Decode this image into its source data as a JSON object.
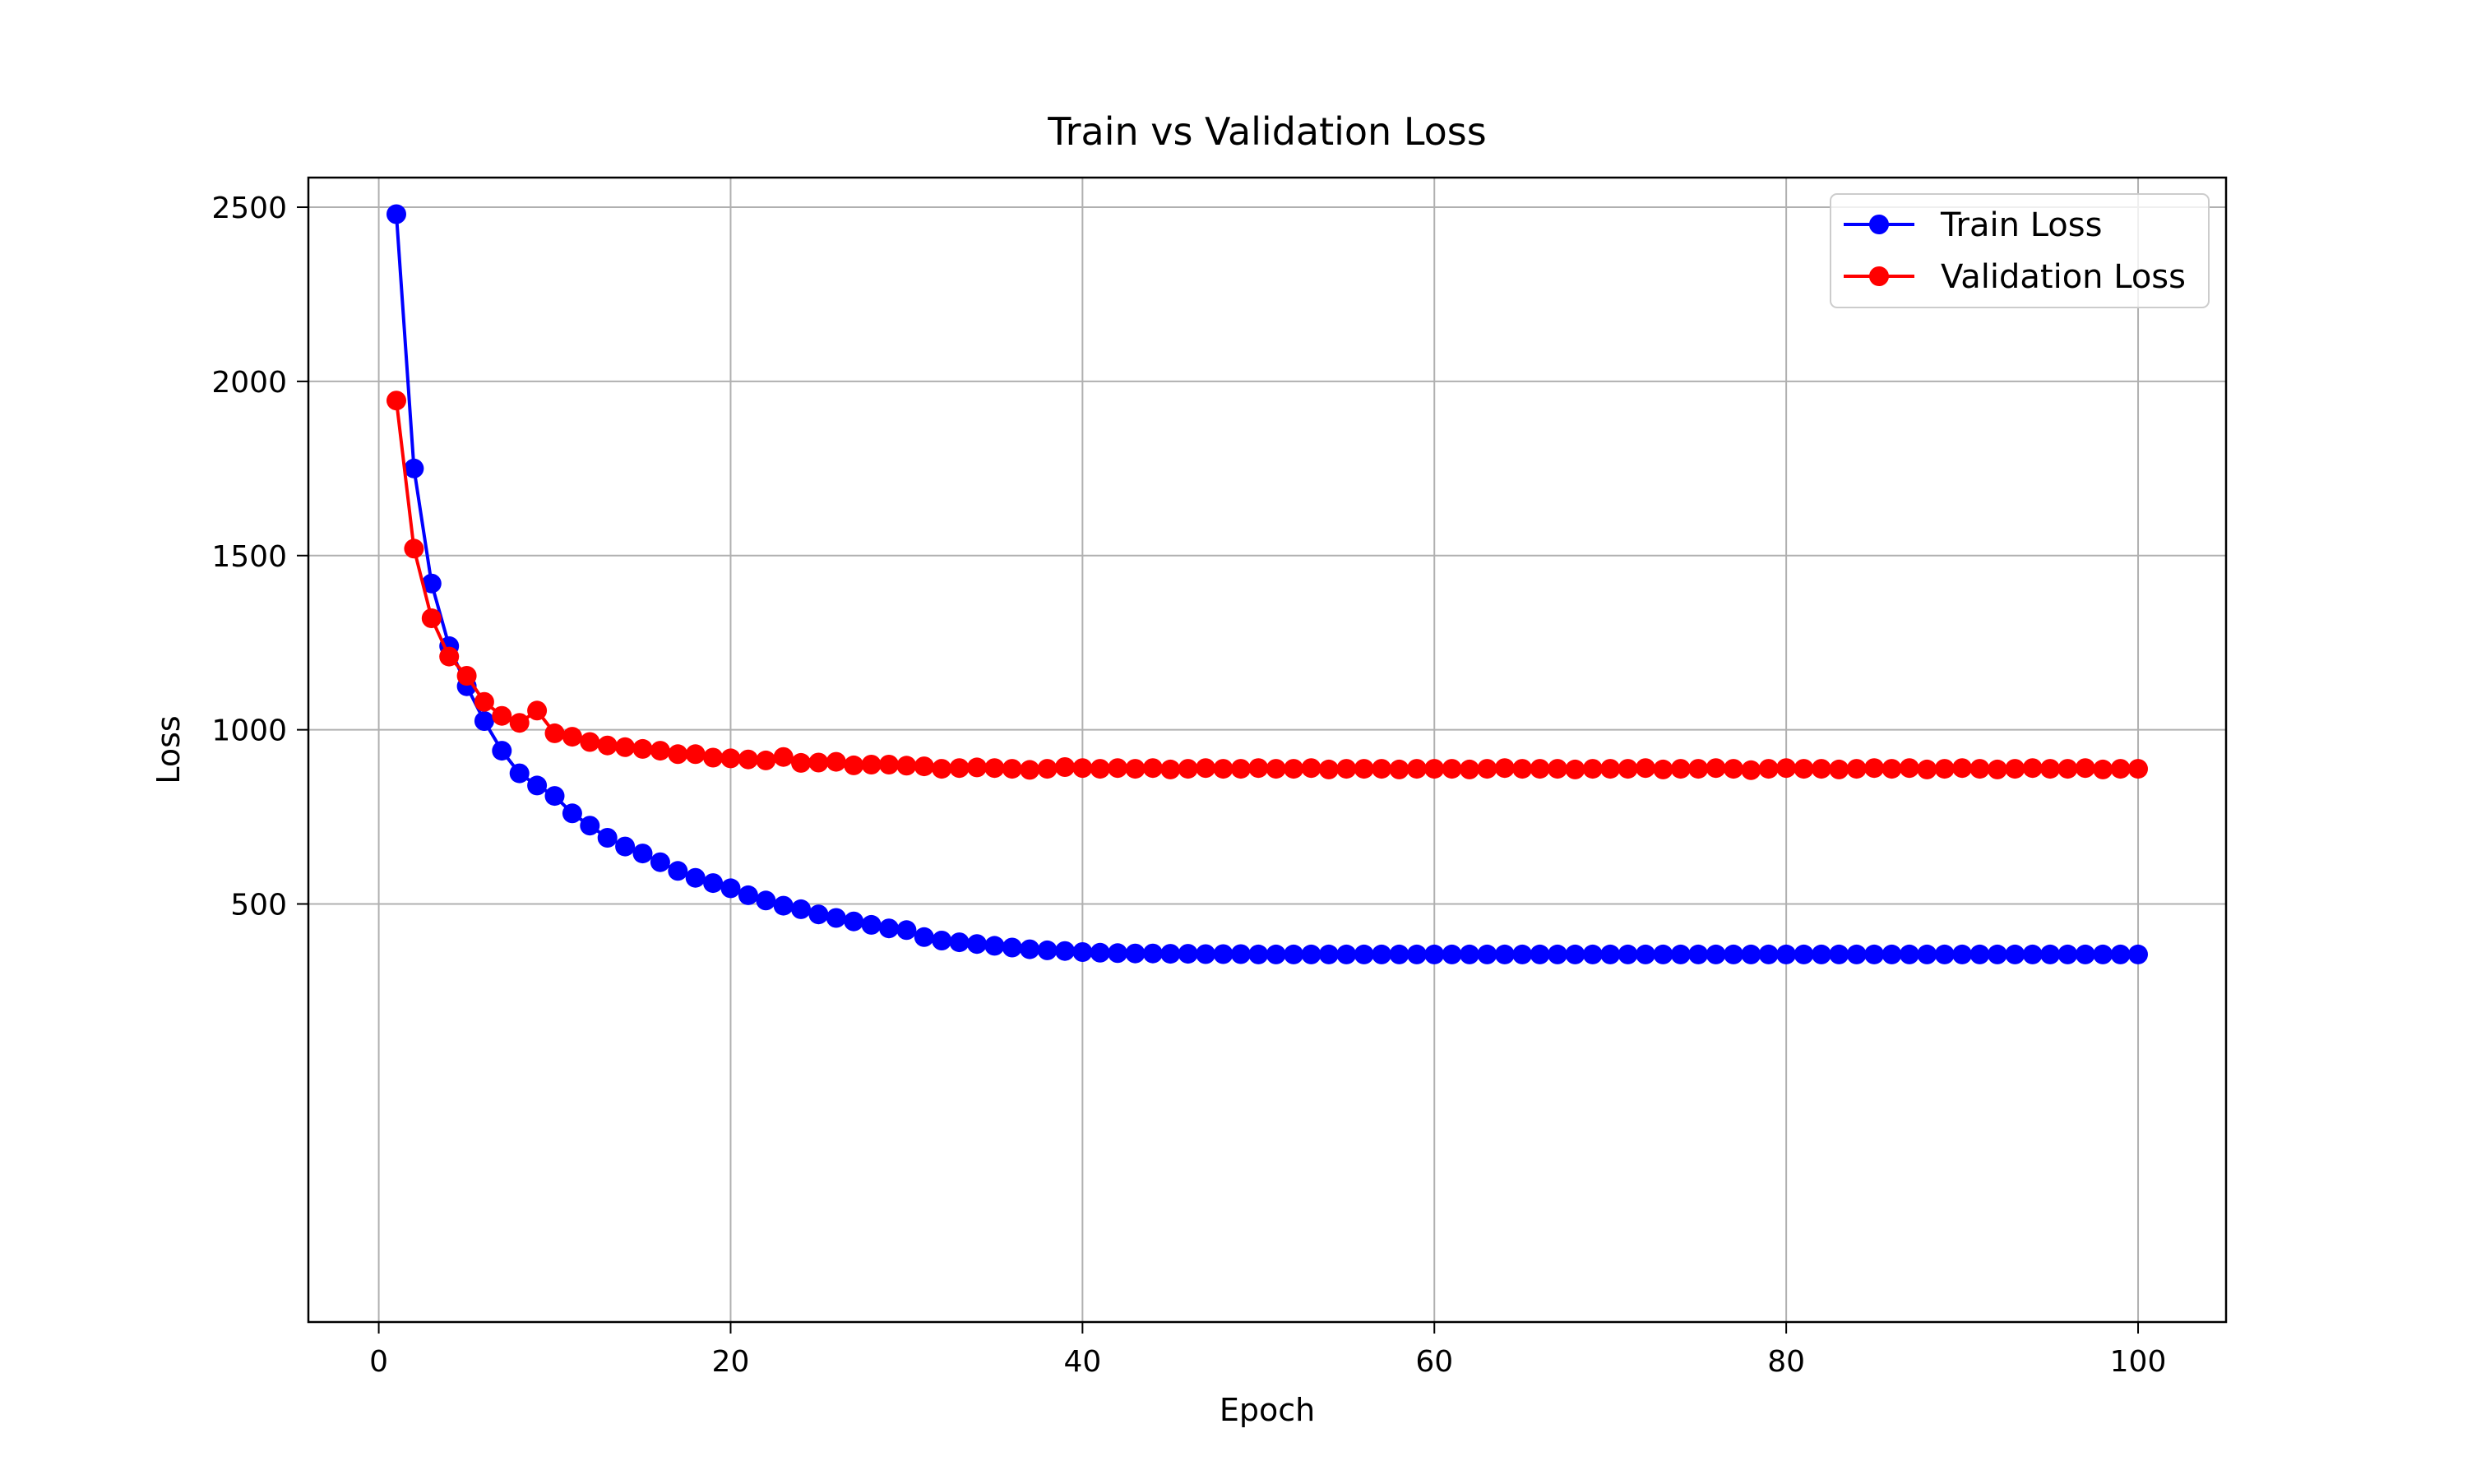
{
  "chart_data": {
    "type": "line",
    "title": "Train vs Validation Loss",
    "xlabel": "Epoch",
    "ylabel": "Loss",
    "xlim": [
      -4,
      105
    ],
    "ylim": [
      -700,
      2585
    ],
    "xticks": [
      0,
      20,
      40,
      60,
      80,
      100
    ],
    "yticks": [
      500,
      1000,
      1500,
      2000,
      2500
    ],
    "grid": true,
    "legend_position": "top-right",
    "x": [
      1,
      2,
      3,
      4,
      5,
      6,
      7,
      8,
      9,
      10,
      11,
      12,
      13,
      14,
      15,
      16,
      17,
      18,
      19,
      20,
      21,
      22,
      23,
      24,
      25,
      26,
      27,
      28,
      29,
      30,
      31,
      32,
      33,
      34,
      35,
      36,
      37,
      38,
      39,
      40,
      41,
      42,
      43,
      44,
      45,
      46,
      47,
      48,
      49,
      50,
      51,
      52,
      53,
      54,
      55,
      56,
      57,
      58,
      59,
      60,
      61,
      62,
      63,
      64,
      65,
      66,
      67,
      68,
      69,
      70,
      71,
      72,
      73,
      74,
      75,
      76,
      77,
      78,
      79,
      80,
      81,
      82,
      83,
      84,
      85,
      86,
      87,
      88,
      89,
      90,
      91,
      92,
      93,
      94,
      95,
      96,
      97,
      98,
      99,
      100
    ],
    "series": [
      {
        "name": "Train Loss",
        "color": "#0000ff",
        "values": [
          2480,
          1750,
          1420,
          1240,
          1125,
          1025,
          940,
          875,
          840,
          810,
          760,
          725,
          690,
          665,
          645,
          620,
          595,
          575,
          560,
          545,
          525,
          510,
          495,
          485,
          470,
          460,
          450,
          440,
          430,
          425,
          405,
          395,
          390,
          385,
          380,
          375,
          370,
          367,
          365,
          362,
          360,
          359,
          358,
          358,
          357,
          357,
          356,
          356,
          356,
          355,
          355,
          355,
          355,
          355,
          355,
          355,
          355,
          355,
          355,
          355,
          355,
          355,
          355,
          355,
          355,
          355,
          355,
          355,
          355,
          355,
          355,
          355,
          355,
          355,
          355,
          355,
          355,
          355,
          355,
          355,
          355,
          355,
          355,
          355,
          355,
          355,
          355,
          355,
          355,
          355,
          355,
          355,
          355,
          355,
          355,
          355,
          355,
          355,
          355,
          355
        ]
      },
      {
        "name": "Validation Loss",
        "color": "#ff0000",
        "values": [
          1945,
          1520,
          1320,
          1210,
          1155,
          1080,
          1040,
          1020,
          1055,
          990,
          980,
          965,
          955,
          950,
          945,
          940,
          930,
          930,
          920,
          918,
          915,
          912,
          922,
          905,
          906,
          908,
          898,
          900,
          900,
          897,
          895,
          888,
          890,
          892,
          890,
          888,
          885,
          888,
          893,
          890,
          888,
          890,
          888,
          890,
          886,
          888,
          890,
          888,
          888,
          890,
          888,
          888,
          890,
          886,
          888,
          888,
          888,
          886,
          888,
          888,
          888,
          886,
          888,
          890,
          888,
          888,
          888,
          886,
          888,
          888,
          888,
          890,
          886,
          888,
          888,
          890,
          888,
          884,
          888,
          890,
          888,
          888,
          886,
          888,
          890,
          888,
          890,
          886,
          888,
          890,
          888,
          886,
          888,
          890,
          888,
          888,
          890,
          886,
          888,
          888
        ]
      }
    ]
  }
}
